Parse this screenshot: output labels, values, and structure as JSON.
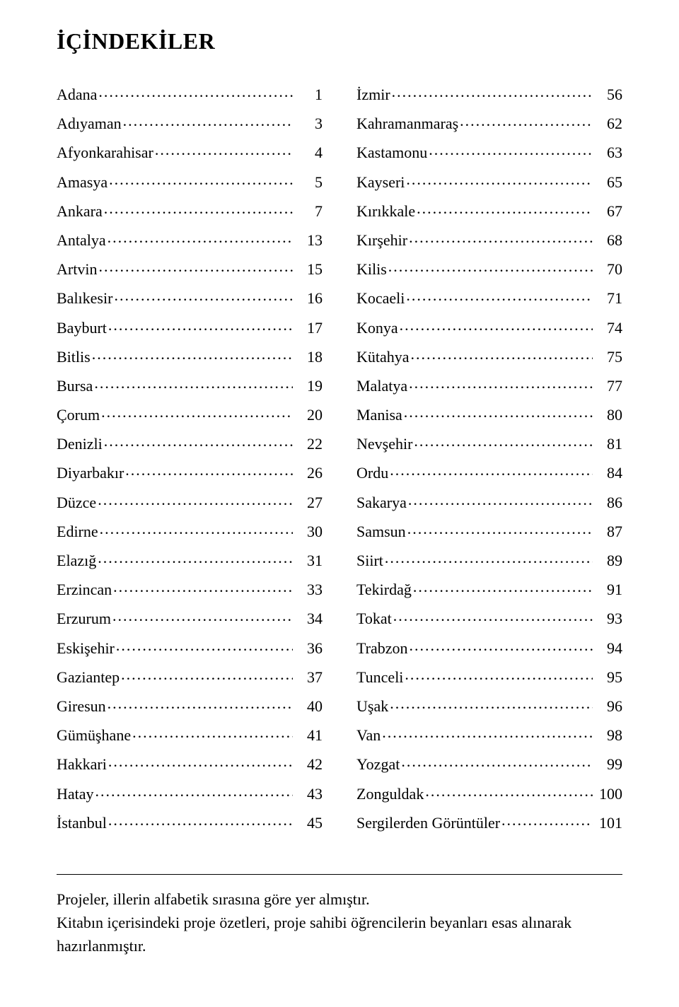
{
  "title": "İÇİNDEKİLER",
  "leftColumn": [
    {
      "label": "Adana",
      "page": "1"
    },
    {
      "label": "Adıyaman",
      "page": "3"
    },
    {
      "label": "Afyonkarahisar",
      "page": "4"
    },
    {
      "label": "Amasya",
      "page": "5"
    },
    {
      "label": "Ankara",
      "page": "7"
    },
    {
      "label": "Antalya",
      "page": "13"
    },
    {
      "label": "Artvin",
      "page": "15"
    },
    {
      "label": "Balıkesir",
      "page": "16"
    },
    {
      "label": "Bayburt",
      "page": "17"
    },
    {
      "label": "Bitlis",
      "page": "18"
    },
    {
      "label": "Bursa",
      "page": "19"
    },
    {
      "label": "Çorum",
      "page": "20"
    },
    {
      "label": "Denizli",
      "page": "22"
    },
    {
      "label": "Diyarbakır",
      "page": "26"
    },
    {
      "label": "Düzce",
      "page": "27"
    },
    {
      "label": "Edirne",
      "page": "30"
    },
    {
      "label": "Elazığ",
      "page": "31"
    },
    {
      "label": "Erzincan",
      "page": "33"
    },
    {
      "label": "Erzurum",
      "page": "34"
    },
    {
      "label": "Eskişehir",
      "page": "36"
    },
    {
      "label": "Gaziantep",
      "page": "37"
    },
    {
      "label": "Giresun",
      "page": "40"
    },
    {
      "label": "Gümüşhane",
      "page": "41"
    },
    {
      "label": "Hakkari",
      "page": "42"
    },
    {
      "label": "Hatay",
      "page": "43"
    },
    {
      "label": "İstanbul",
      "page": "45"
    }
  ],
  "rightColumn": [
    {
      "label": "İzmir",
      "page": "56"
    },
    {
      "label": "Kahramanmaraş",
      "page": "62"
    },
    {
      "label": "Kastamonu",
      "page": "63"
    },
    {
      "label": "Kayseri",
      "page": "65"
    },
    {
      "label": "Kırıkkale",
      "page": "67"
    },
    {
      "label": "Kırşehir",
      "page": "68"
    },
    {
      "label": "Kilis",
      "page": "70"
    },
    {
      "label": "Kocaeli",
      "page": "71"
    },
    {
      "label": "Konya",
      "page": "74"
    },
    {
      "label": "Kütahya",
      "page": "75"
    },
    {
      "label": "Malatya",
      "page": "77"
    },
    {
      "label": "Manisa",
      "page": "80"
    },
    {
      "label": "Nevşehir",
      "page": "81"
    },
    {
      "label": "Ordu",
      "page": "84"
    },
    {
      "label": "Sakarya",
      "page": "86"
    },
    {
      "label": "Samsun",
      "page": "87"
    },
    {
      "label": "Siirt",
      "page": "89"
    },
    {
      "label": "Tekirdağ",
      "page": "91"
    },
    {
      "label": "Tokat",
      "page": "93"
    },
    {
      "label": "Trabzon",
      "page": "94"
    },
    {
      "label": "Tunceli",
      "page": "95"
    },
    {
      "label": "Uşak",
      "page": "96"
    },
    {
      "label": "Van",
      "page": "98"
    },
    {
      "label": "Yozgat",
      "page": "99"
    },
    {
      "label": "Zonguldak",
      "page": "100"
    },
    {
      "label": "Sergilerden Görüntüler",
      "page": "101"
    }
  ],
  "footnote": {
    "line1": "Projeler, illerin alfabetik sırasına göre yer almıştır.",
    "line2": "Kitabın içerisindeki proje özetleri, proje sahibi öğrencilerin beyanları esas alınarak hazırlanmıştır."
  }
}
